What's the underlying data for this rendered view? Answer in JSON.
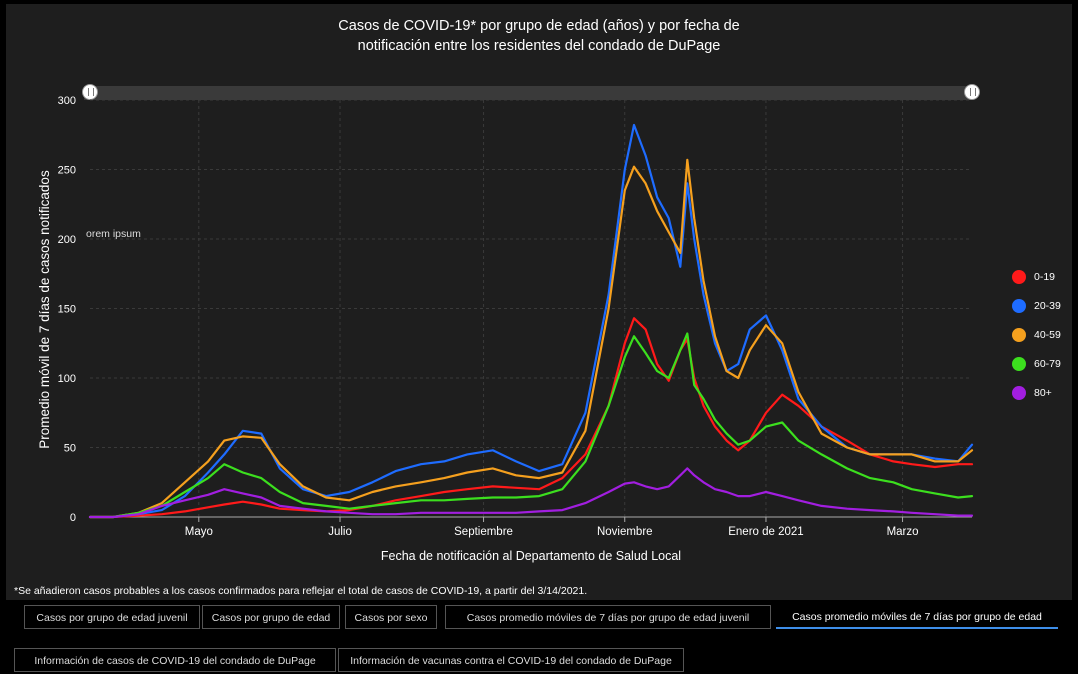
{
  "title_line1": "Casos de COVID-19* por grupo de edad (años) y por fecha de",
  "title_line2": "notificación entre los residentes del condado de DuPage",
  "stray_text": "orem ipsum",
  "footnote": "*Se añadieron casos probables a los casos confirmados para reflejar el total de casos de COVID-19, a partir del 3/14/2021.",
  "tabs_row1": [
    {
      "label": "Casos por grupo de edad juvenil",
      "active": false
    },
    {
      "label": "Casos por grupo de edad",
      "active": false
    },
    {
      "label": "Casos por sexo",
      "active": false
    },
    {
      "label": "Casos promedio móviles de 7 días por grupo de edad juvenil",
      "active": false
    },
    {
      "label": "Casos promedio móviles de 7 días por grupo de edad",
      "active": true
    }
  ],
  "tabs_row2": [
    {
      "label": "Información de casos de COVID-19 del condado de DuPage"
    },
    {
      "label": "Información de vacunas contra el COVID-19 del condado de DuPage"
    }
  ],
  "chart_data": {
    "type": "line",
    "title": "Casos de COVID-19* por grupo de edad (años) y por fecha de notificación entre los residentes del condado de DuPage",
    "xlabel": "Fecha de notificación al Departamento de Salud Local",
    "ylabel": "Promedio móvil de 7 días de casos notificados",
    "ylim": [
      0,
      300
    ],
    "yticks": [
      0,
      50,
      100,
      150,
      200,
      250,
      300
    ],
    "xlim": [
      "2020-03-15",
      "2021-03-31"
    ],
    "xticks": [
      {
        "date": "2020-05-01",
        "label": "Mayo"
      },
      {
        "date": "2020-07-01",
        "label": "Julio"
      },
      {
        "date": "2020-09-01",
        "label": "Septiembre"
      },
      {
        "date": "2020-11-01",
        "label": "Noviembre"
      },
      {
        "date": "2021-01-01",
        "label": "Enero de 2021"
      },
      {
        "date": "2021-03-01",
        "label": "Marzo"
      }
    ],
    "grid": true,
    "legend_position": "right",
    "x": [
      "2020-03-15",
      "2020-03-25",
      "2020-04-05",
      "2020-04-15",
      "2020-04-25",
      "2020-05-05",
      "2020-05-12",
      "2020-05-20",
      "2020-05-28",
      "2020-06-05",
      "2020-06-15",
      "2020-06-25",
      "2020-07-05",
      "2020-07-15",
      "2020-07-25",
      "2020-08-05",
      "2020-08-15",
      "2020-08-25",
      "2020-09-05",
      "2020-09-15",
      "2020-09-25",
      "2020-10-05",
      "2020-10-15",
      "2020-10-25",
      "2020-11-01",
      "2020-11-05",
      "2020-11-10",
      "2020-11-15",
      "2020-11-20",
      "2020-11-25",
      "2020-11-28",
      "2020-12-01",
      "2020-12-05",
      "2020-12-10",
      "2020-12-15",
      "2020-12-20",
      "2020-12-25",
      "2021-01-01",
      "2021-01-08",
      "2021-01-15",
      "2021-01-25",
      "2021-02-05",
      "2021-02-15",
      "2021-02-25",
      "2021-03-05",
      "2021-03-15",
      "2021-03-25",
      "2021-03-31"
    ],
    "series": [
      {
        "name": "0-19",
        "color": "#ff1a1a",
        "values": [
          0,
          0,
          1,
          2,
          4,
          7,
          9,
          11,
          9,
          6,
          5,
          4,
          5,
          8,
          12,
          15,
          18,
          20,
          22,
          21,
          20,
          28,
          45,
          80,
          125,
          143,
          135,
          110,
          98,
          120,
          128,
          100,
          80,
          65,
          55,
          48,
          55,
          75,
          88,
          80,
          65,
          55,
          45,
          40,
          38,
          36,
          38,
          38
        ]
      },
      {
        "name": "20-39",
        "color": "#1e6cff",
        "values": [
          0,
          0,
          2,
          5,
          15,
          32,
          45,
          62,
          60,
          35,
          20,
          15,
          18,
          25,
          33,
          38,
          40,
          45,
          48,
          40,
          33,
          38,
          75,
          160,
          250,
          282,
          260,
          230,
          215,
          180,
          240,
          200,
          160,
          125,
          105,
          110,
          135,
          145,
          120,
          85,
          65,
          50,
          45,
          45,
          45,
          42,
          40,
          52
        ]
      },
      {
        "name": "40-59",
        "color": "#f5a01e",
        "values": [
          0,
          0,
          3,
          10,
          25,
          40,
          55,
          58,
          57,
          38,
          22,
          14,
          12,
          18,
          22,
          25,
          28,
          32,
          35,
          30,
          28,
          32,
          62,
          150,
          235,
          252,
          240,
          220,
          205,
          190,
          257,
          215,
          170,
          130,
          105,
          100,
          120,
          138,
          125,
          90,
          60,
          50,
          45,
          45,
          45,
          40,
          40,
          48
        ]
      },
      {
        "name": "60-79",
        "color": "#3cdf1e",
        "values": [
          0,
          0,
          3,
          8,
          18,
          28,
          38,
          32,
          28,
          18,
          10,
          8,
          6,
          8,
          10,
          12,
          12,
          13,
          14,
          14,
          15,
          20,
          40,
          80,
          115,
          130,
          118,
          105,
          100,
          120,
          132,
          95,
          85,
          70,
          60,
          52,
          55,
          65,
          68,
          55,
          45,
          35,
          28,
          25,
          20,
          17,
          14,
          15
        ]
      },
      {
        "name": "80+",
        "color": "#a21ee0",
        "values": [
          0,
          0,
          2,
          8,
          12,
          16,
          20,
          17,
          14,
          8,
          6,
          4,
          3,
          2,
          2,
          3,
          3,
          3,
          3,
          3,
          4,
          5,
          10,
          18,
          24,
          25,
          22,
          20,
          22,
          30,
          35,
          30,
          25,
          20,
          18,
          15,
          15,
          18,
          15,
          12,
          8,
          6,
          5,
          4,
          3,
          2,
          1,
          1
        ]
      }
    ]
  }
}
